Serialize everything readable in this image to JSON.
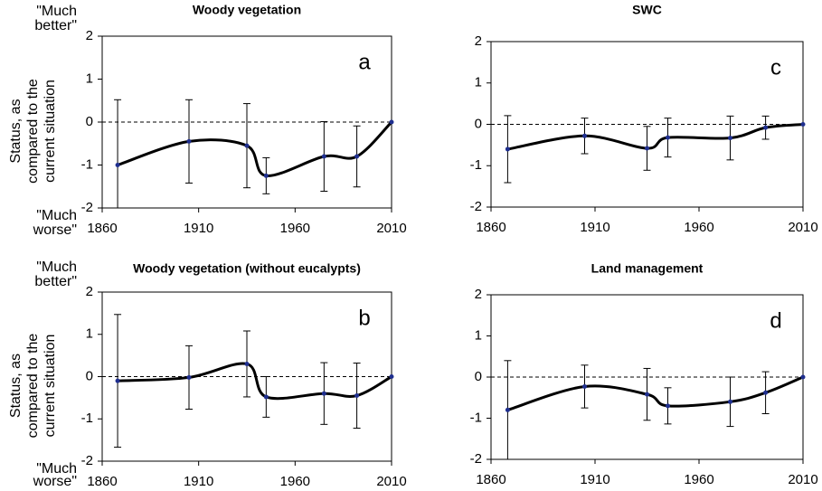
{
  "chart_data": [
    {
      "type": "line",
      "title": "Woody vegetation",
      "annotation": "a",
      "ylabel": [
        "Status, as",
        "compared to the",
        "current situation"
      ],
      "top_label": [
        "\"Much",
        "better\""
      ],
      "bottom_label": [
        "\"Much",
        "worse\""
      ],
      "x": [
        1868,
        1905,
        1935,
        1945,
        1975,
        1992,
        2010
      ],
      "values": [
        -1.0,
        -0.45,
        -0.55,
        -1.25,
        -0.8,
        -0.8,
        0
      ],
      "errors": [
        1.52,
        0.97,
        0.98,
        0.42,
        0.81,
        0.71,
        0
      ],
      "color": "#000000",
      "marker_color": "#1f2f8f",
      "xlim": [
        1860,
        2010
      ],
      "xticks": [
        1860,
        1910,
        1960,
        2010
      ],
      "ylim": [
        -2,
        2
      ],
      "yticks": [
        -2,
        -1,
        0,
        1,
        2
      ]
    },
    {
      "type": "line",
      "title": "Woody vegetation (without eucalypts)",
      "annotation": "b",
      "ylabel": [
        "Status, as",
        "compared to the",
        "current situation"
      ],
      "top_label": [
        "\"Much",
        "better\""
      ],
      "bottom_label": [
        "\"Much",
        "worse\""
      ],
      "x": [
        1868,
        1905,
        1935,
        1945,
        1975,
        1992,
        2010
      ],
      "values": [
        -0.1,
        -0.02,
        0.3,
        -0.48,
        -0.4,
        -0.45,
        0
      ],
      "errors": [
        1.57,
        0.75,
        0.78,
        0.48,
        0.73,
        0.77,
        0
      ],
      "color": "#000000",
      "marker_color": "#1f2f8f",
      "xlim": [
        1860,
        2010
      ],
      "xticks": [
        1860,
        1910,
        1960,
        2010
      ],
      "ylim": [
        -2,
        2
      ],
      "yticks": [
        -2,
        -1,
        0,
        1,
        2
      ]
    },
    {
      "type": "line",
      "title": "SWC",
      "annotation": "c",
      "x": [
        1868,
        1905,
        1935,
        1945,
        1975,
        1992,
        2010
      ],
      "values": [
        -0.6,
        -0.28,
        -0.58,
        -0.32,
        -0.33,
        -0.08,
        0
      ],
      "errors": [
        0.81,
        0.43,
        0.53,
        0.47,
        0.53,
        0.28,
        0
      ],
      "color": "#000000",
      "marker_color": "#1f2f8f",
      "xlim": [
        1860,
        2010
      ],
      "xticks": [
        1860,
        1910,
        1960,
        2010
      ],
      "ylim": [
        -2,
        2
      ],
      "yticks": [
        -2,
        -1,
        0,
        1,
        2
      ]
    },
    {
      "type": "line",
      "title": "Land management",
      "annotation": "d",
      "x": [
        1868,
        1905,
        1935,
        1945,
        1975,
        1992,
        2010
      ],
      "values": [
        -0.8,
        -0.23,
        -0.42,
        -0.7,
        -0.6,
        -0.38,
        0
      ],
      "errors": [
        1.2,
        0.52,
        0.63,
        0.44,
        0.6,
        0.51,
        0
      ],
      "color": "#000000",
      "marker_color": "#1f2f8f",
      "xlim": [
        1860,
        2010
      ],
      "xticks": [
        1860,
        1910,
        1960,
        2010
      ],
      "ylim": [
        -2,
        2
      ],
      "yticks": [
        -2,
        -1,
        0,
        1,
        2
      ]
    }
  ]
}
